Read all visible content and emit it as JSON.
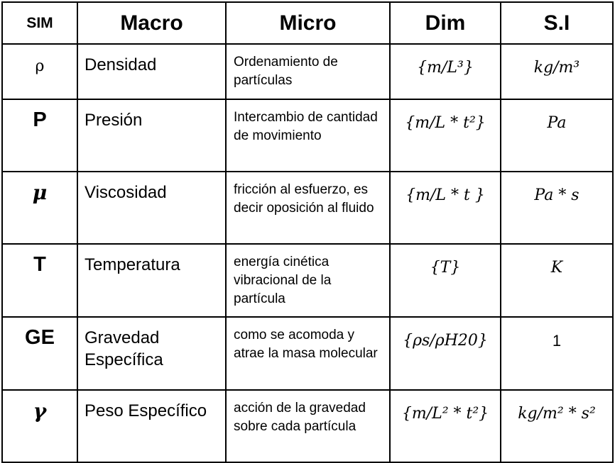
{
  "header": {
    "sim": "SIM",
    "macro": "Macro",
    "micro": "Micro",
    "dim": "Dim",
    "si": "S.I"
  },
  "rows": [
    {
      "sym": "ρ",
      "macro": "Densidad",
      "micro": "Ordenamiento de partículas",
      "dim": "{m/L³}",
      "si": "kg/m³"
    },
    {
      "sym": "P",
      "macro": "Presión",
      "micro": "Intercambio de cantidad de movimiento",
      "dim": "{m/L * t²}",
      "si": "Pa"
    },
    {
      "sym": "μ",
      "macro": "Viscosidad",
      "micro": "fricción al esfuerzo, es decir oposición al fluido",
      "dim": "{m/L * t }",
      "si": "Pa * s"
    },
    {
      "sym": "T",
      "macro": "Temperatura",
      "micro": "energía cinética vibracional de la partícula",
      "dim": "{T}",
      "si": "K"
    },
    {
      "sym": "GE",
      "macro": "Gravedad Específica",
      "micro": "como se acomoda y atrae la masa molecular",
      "dim": "{ρs/ρH20}",
      "si": "1"
    },
    {
      "sym": "γ",
      "macro": "Peso Específico",
      "micro": "acción de la gravedad sobre cada partícula",
      "dim": "{m/L² * t²}",
      "si": "kg/m² * s²"
    }
  ]
}
